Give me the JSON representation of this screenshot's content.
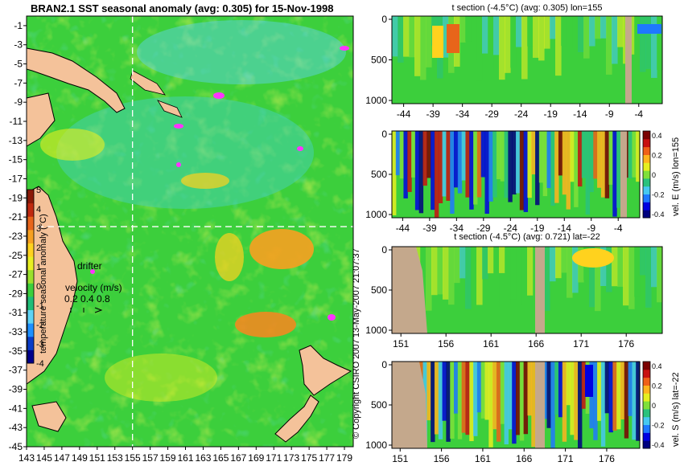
{
  "colors": {
    "anomaly_scale": [
      "#00008b",
      "#0a3cc8",
      "#1e90ff",
      "#5fd3f5",
      "#1fbe78",
      "#3ccf3c",
      "#9be02c",
      "#e8ef22",
      "#ffd21e",
      "#f7a020",
      "#e8651a",
      "#c02a10",
      "#8b1a08"
    ],
    "velocity_scale": [
      "#00007f",
      "#0000e0",
      "#1e78ff",
      "#46c8f0",
      "#29c27d",
      "#7fe03a",
      "#e6ef20",
      "#ffb41e",
      "#f06018",
      "#c81010",
      "#7a0000"
    ],
    "land": "#f4c29a",
    "section_land": "#c4a88c",
    "island_marker": "#ff33ff"
  },
  "chart_data": [
    {
      "type": "heatmap",
      "title": "BRAN2.1 SST seasonal anomaly (avg: 0.305) for 15-Nov-1998",
      "x_ticks": [
        "143",
        "145",
        "147",
        "149",
        "151",
        "153",
        "155",
        "157",
        "159",
        "161",
        "163",
        "165",
        "167",
        "169",
        "171",
        "173",
        "175",
        "177",
        "179"
      ],
      "y_ticks": [
        "-1",
        "-3",
        "-5",
        "-7",
        "-9",
        "-11",
        "-13",
        "-15",
        "-17",
        "-19",
        "-21",
        "-23",
        "-25",
        "-27",
        "-29",
        "-31",
        "-33",
        "-35",
        "-37",
        "-39",
        "-41",
        "-43",
        "-45"
      ],
      "xlim": [
        143,
        180
      ],
      "ylim": [
        -45,
        0
      ],
      "crosshair": {
        "lon": 155,
        "lat": -22
      },
      "colorbar": {
        "label": "temperature seasonal anomaly (°C)",
        "ticks": [
          "5",
          "4",
          "3",
          "2",
          "1",
          "0",
          "-1",
          "-2",
          "-3",
          "-4"
        ],
        "range": [
          -4,
          5
        ]
      },
      "legend": {
        "drifter_label": "drifter",
        "velocity_label": "velocity (m/s)",
        "velocity_values": "0.2 0.4 0.8"
      }
    },
    {
      "type": "heatmap",
      "title": "t section (-4.5°C) (avg: 0.305) lon=155",
      "x_ticks": [
        "-44",
        "-39",
        "-34",
        "-29",
        "-24",
        "-19",
        "-14",
        "-9",
        "-4"
      ],
      "y_ticks": [
        "0",
        "500",
        "1000"
      ],
      "xlim": [
        -46,
        0
      ],
      "ylim": [
        1000,
        0
      ]
    },
    {
      "type": "heatmap",
      "title": "",
      "x_ticks": [
        "-44",
        "-39",
        "-34",
        "-29",
        "-24",
        "-19",
        "-14",
        "-9",
        "-4"
      ],
      "y_ticks": [
        "0",
        "500",
        "1000"
      ],
      "xlim": [
        -46,
        0
      ],
      "ylim": [
        1000,
        0
      ],
      "colorbar": {
        "label": "vel. E (m/s) lon=155",
        "ticks": [
          "0.4",
          "0.2",
          "0",
          "-0.2",
          "-0.4"
        ],
        "range": [
          -0.4,
          0.4
        ]
      }
    },
    {
      "type": "heatmap",
      "title": "t section (-4.5°C) (avg: 0.721) lat=-22",
      "x_ticks": [
        "151",
        "156",
        "161",
        "166",
        "171",
        "176"
      ],
      "y_ticks": [
        "0",
        "500",
        "1000"
      ],
      "xlim": [
        150,
        180
      ],
      "ylim": [
        1000,
        0
      ]
    },
    {
      "type": "heatmap",
      "title": "",
      "x_ticks": [
        "151",
        "156",
        "161",
        "166",
        "171",
        "176"
      ],
      "y_ticks": [
        "0",
        "500",
        "1000"
      ],
      "xlim": [
        150,
        180
      ],
      "ylim": [
        1000,
        0
      ],
      "colorbar": {
        "label": "vel. S (m/s) lat=-22",
        "ticks": [
          "0.4",
          "0.2",
          "0",
          "-0.2",
          "-0.4"
        ],
        "range": [
          -0.4,
          0.4
        ]
      }
    }
  ],
  "stamp": "13-May-2007 21:07:37",
  "copyright": "© Copyright CSIRO 2007"
}
